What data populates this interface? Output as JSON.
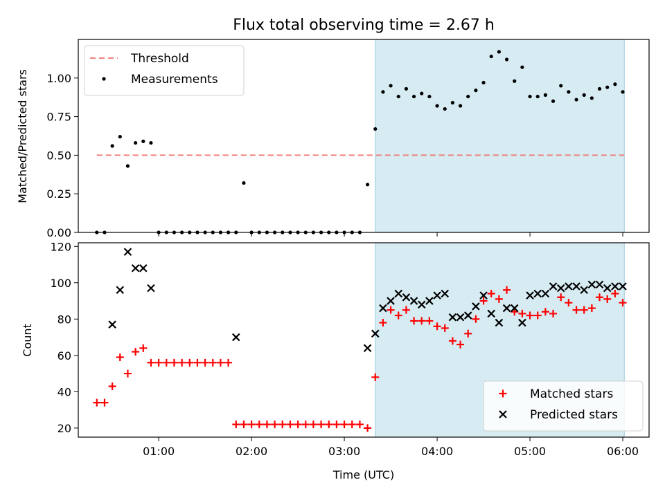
{
  "chart_data": [
    {
      "type": "scatter",
      "title": "Flux total observing time = 2.67 h",
      "xlabel": "",
      "ylabel": "Matched/Predicted stars",
      "xlim": [
        "00:08",
        "06:17"
      ],
      "ylim": [
        0,
        1.25
      ],
      "xticks": [],
      "yticks": [
        "0.00",
        "0.25",
        "0.50",
        "0.75",
        "1.00"
      ],
      "shaded_span": [
        "03:20",
        "06:01"
      ],
      "legend_position": "top-left",
      "threshold": {
        "name": "Threshold",
        "value": 0.5,
        "x": [
          "00:20",
          "06:01"
        ],
        "color": "#f08080"
      },
      "series": [
        {
          "name": "Measurements",
          "color": "#000000",
          "x": [
            "00:20",
            "00:25",
            "00:30",
            "00:35",
            "00:40",
            "00:45",
            "00:50",
            "00:55",
            "01:00",
            "01:05",
            "01:10",
            "01:15",
            "01:20",
            "01:25",
            "01:30",
            "01:35",
            "01:40",
            "01:45",
            "01:50",
            "01:55",
            "02:00",
            "02:05",
            "02:10",
            "02:15",
            "02:20",
            "02:25",
            "02:30",
            "02:35",
            "02:40",
            "02:45",
            "02:50",
            "02:55",
            "03:00",
            "03:05",
            "03:10",
            "03:15",
            "03:20",
            "03:25",
            "03:30",
            "03:35",
            "03:40",
            "03:45",
            "03:50",
            "03:55",
            "04:00",
            "04:05",
            "04:10",
            "04:15",
            "04:20",
            "04:25",
            "04:30",
            "04:35",
            "04:40",
            "04:45",
            "04:50",
            "04:55",
            "05:00",
            "05:05",
            "05:10",
            "05:15",
            "05:20",
            "05:25",
            "05:30",
            "05:35",
            "05:40",
            "05:45",
            "05:50",
            "05:55",
            "06:00"
          ],
          "y": [
            0,
            0,
            0.56,
            0.62,
            0.43,
            0.58,
            0.59,
            0.58,
            0,
            0,
            0,
            0,
            0,
            0,
            0,
            0,
            0,
            0,
            0,
            0.32,
            0,
            0,
            0,
            0,
            0,
            0,
            0,
            0,
            0,
            0,
            0,
            0,
            0,
            0,
            0,
            0.31,
            0.67,
            0.91,
            0.95,
            0.88,
            0.93,
            0.88,
            0.9,
            0.88,
            0.82,
            0.8,
            0.84,
            0.82,
            0.88,
            0.92,
            0.97,
            1.14,
            1.17,
            1.12,
            0.98,
            1.07,
            0.88,
            0.88,
            0.89,
            0.85,
            0.95,
            0.91,
            0.86,
            0.89,
            0.87,
            0.93,
            0.94,
            0.96,
            0.91
          ]
        }
      ]
    },
    {
      "type": "scatter",
      "title": "",
      "xlabel": "Time (UTC)",
      "ylabel": "Count",
      "xlim": [
        "00:08",
        "06:17"
      ],
      "ylim": [
        15,
        122
      ],
      "xticks": [
        "01:00",
        "02:00",
        "03:00",
        "04:00",
        "05:00",
        "06:00"
      ],
      "yticks": [
        "20",
        "40",
        "60",
        "80",
        "100",
        "120"
      ],
      "shaded_span": [
        "03:20",
        "06:01"
      ],
      "legend_position": "lower-right",
      "series": [
        {
          "name": "Matched stars",
          "marker": "plus",
          "color": "#ff0000",
          "x": [
            "00:20",
            "00:25",
            "00:30",
            "00:35",
            "00:40",
            "00:45",
            "00:50",
            "00:55",
            "01:00",
            "01:05",
            "01:10",
            "01:15",
            "01:20",
            "01:25",
            "01:30",
            "01:35",
            "01:40",
            "01:45",
            "01:50",
            "01:55",
            "02:00",
            "02:05",
            "02:10",
            "02:15",
            "02:20",
            "02:25",
            "02:30",
            "02:35",
            "02:40",
            "02:45",
            "02:50",
            "02:55",
            "03:00",
            "03:05",
            "03:10",
            "03:15",
            "03:20",
            "03:25",
            "03:30",
            "03:35",
            "03:40",
            "03:45",
            "03:50",
            "03:55",
            "04:00",
            "04:05",
            "04:10",
            "04:15",
            "04:20",
            "04:25",
            "04:30",
            "04:35",
            "04:40",
            "04:45",
            "04:50",
            "04:55",
            "05:00",
            "05:05",
            "05:10",
            "05:15",
            "05:20",
            "05:25",
            "05:30",
            "05:35",
            "05:40",
            "05:45",
            "05:50",
            "05:55",
            "06:00"
          ],
          "y": [
            34,
            34,
            43,
            59,
            50,
            62,
            64,
            56,
            56,
            56,
            56,
            56,
            56,
            56,
            56,
            56,
            56,
            56,
            22,
            22,
            22,
            22,
            22,
            22,
            22,
            22,
            22,
            22,
            22,
            22,
            22,
            22,
            22,
            22,
            22,
            20,
            48,
            78,
            85,
            82,
            85,
            79,
            79,
            79,
            76,
            75,
            68,
            66,
            72,
            80,
            90,
            94,
            91,
            96,
            84,
            83,
            82,
            82,
            84,
            83,
            92,
            89,
            85,
            85,
            86,
            92,
            91,
            94,
            89
          ]
        },
        {
          "name": "Predicted stars",
          "marker": "cross",
          "color": "#000000",
          "x": [
            "00:30",
            "00:35",
            "00:40",
            "00:45",
            "00:50",
            "00:55",
            "01:50",
            "03:15",
            "03:20",
            "03:25",
            "03:30",
            "03:35",
            "03:40",
            "03:45",
            "03:50",
            "03:55",
            "04:00",
            "04:05",
            "04:10",
            "04:15",
            "04:20",
            "04:25",
            "04:30",
            "04:35",
            "04:40",
            "04:45",
            "04:50",
            "04:55",
            "05:00",
            "05:05",
            "05:10",
            "05:15",
            "05:20",
            "05:25",
            "05:30",
            "05:35",
            "05:40",
            "05:45",
            "05:50",
            "05:55",
            "06:00"
          ],
          "y": [
            77,
            96,
            117,
            108,
            108,
            97,
            70,
            64,
            72,
            86,
            90,
            94,
            92,
            90,
            88,
            90,
            93,
            94,
            81,
            81,
            82,
            87,
            93,
            83,
            78,
            86,
            86,
            78,
            93,
            94,
            94,
            98,
            97,
            98,
            98,
            96,
            99,
            99,
            97,
            98,
            98
          ]
        }
      ]
    }
  ]
}
